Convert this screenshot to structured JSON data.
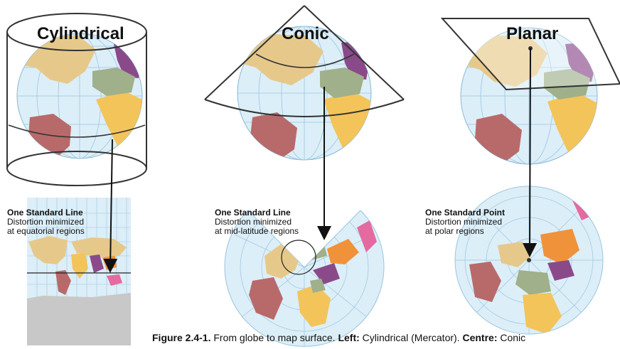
{
  "projections": {
    "cylindrical": {
      "title": "Cylindrical",
      "heading": "One Standard Line",
      "line1": "Distortion minimized",
      "line2": "at equatorial regions"
    },
    "conic": {
      "title": "Conic",
      "heading": "One Standard Line",
      "line1": "Distortion minimized",
      "line2": "at mid-latitude regions"
    },
    "planar": {
      "title": "Planar",
      "heading": "One Standard Point",
      "line1": "Distortion minimized",
      "line2": "at polar regions"
    }
  },
  "caption": {
    "figure_label": "Figure 2.4-1.",
    "text1": " From globe to map surface. ",
    "left_label": "Left:",
    "left_text": " Cylindrical (Mercator). ",
    "centre_label": "Centre:",
    "centre_text": " Conic"
  },
  "colors": {
    "ocean": "#dceef8",
    "grid": "#9cc6de",
    "north_america": "#e6c98a",
    "south_america": "#b86a6a",
    "africa": "#f3c45a",
    "europe": "#9fb08a",
    "asia": "#f0923a",
    "russia": "#8a4a8a",
    "oceania": "#e46aa0",
    "antarctica": "#c8c8c8"
  }
}
